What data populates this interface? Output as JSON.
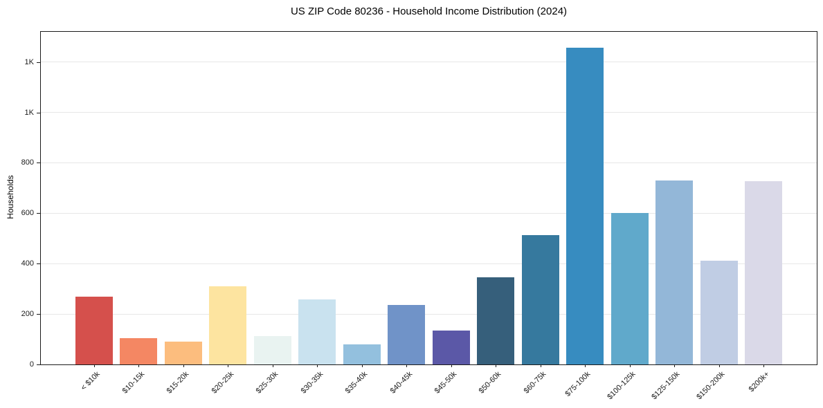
{
  "chart_data": {
    "type": "bar",
    "title": "US ZIP Code 80236 - Household Income Distribution (2024)",
    "xlabel": "",
    "ylabel": "Households",
    "categories": [
      "< $10k",
      "$10-15k",
      "$15-20k",
      "$20-25k",
      "$25-30k",
      "$30-35k",
      "$35-40k",
      "$40-45k",
      "$45-50k",
      "$50-60k",
      "$60-75k",
      "$75-100k",
      "$100-125k",
      "$125-150k",
      "$150-200k",
      "$200k+"
    ],
    "values": [
      268,
      104,
      90,
      309,
      112,
      259,
      80,
      236,
      135,
      345,
      513,
      1257,
      602,
      731,
      411,
      726
    ],
    "bar_colors": [
      "#d5504c",
      "#f48763",
      "#fcbd7e",
      "#fde4a0",
      "#e9f3f1",
      "#c9e2ef",
      "#93c0de",
      "#7093c8",
      "#5b58a7",
      "#365f7b",
      "#36799e",
      "#378cc0",
      "#60a9cb",
      "#93b7d8",
      "#c0cde4",
      "#dad9e8"
    ],
    "ylim": [
      0,
      1320
    ],
    "yticks": [
      {
        "value": 0,
        "label": "0"
      },
      {
        "value": 200,
        "label": "200"
      },
      {
        "value": 400,
        "label": "400"
      },
      {
        "value": 600,
        "label": "600"
      },
      {
        "value": 800,
        "label": "800"
      },
      {
        "value": 1000,
        "label": "1K"
      },
      {
        "value": 1200,
        "label": "1K"
      }
    ],
    "grid": "horizontal gridlines at y-ticks, grid off at 0",
    "legend_position": "none",
    "background_color": "#ffffff",
    "axis_color": "#1a1a1a",
    "grid_color": "#e7e7e7",
    "xlabel_rotation_deg": 45
  }
}
